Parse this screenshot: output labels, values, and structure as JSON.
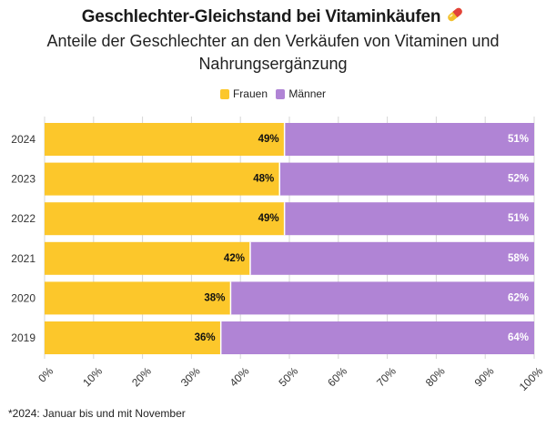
{
  "header": {
    "title": "Geschlechter-Gleichstand bei Vitaminkäufen",
    "title_icon": "pill-icon",
    "subtitle_line1": "Anteile der Geschlechter an den Verkäufen von Vitaminen und",
    "subtitle_line2": "Nahrungsergänzung"
  },
  "footnote": "*2024: Januar bis und mit November",
  "colors": {
    "frauen": "#FCC72B",
    "maenner": "#B084D5",
    "grid": "#d6d6d6"
  },
  "chart_data": {
    "type": "bar",
    "orientation": "horizontal",
    "stacked": true,
    "percent": true,
    "categories": [
      "2024",
      "2023",
      "2022",
      "2021",
      "2020",
      "2019"
    ],
    "series": [
      {
        "name": "Frauen",
        "values": [
          49,
          48,
          49,
          42,
          38,
          36
        ]
      },
      {
        "name": "Männer",
        "values": [
          51,
          52,
          51,
          58,
          62,
          64
        ]
      }
    ],
    "value_labels": {
      "Frauen": [
        "49%",
        "48%",
        "49%",
        "42%",
        "38%",
        "36%"
      ],
      "Männer": [
        "51%",
        "52%",
        "51%",
        "58%",
        "62%",
        "64%"
      ]
    },
    "xticks": [
      "0%",
      "10%",
      "20%",
      "30%",
      "40%",
      "50%",
      "60%",
      "70%",
      "80%",
      "90%",
      "100%"
    ],
    "xlim": [
      0,
      100
    ],
    "legend_position": "top-center",
    "grid": true
  }
}
